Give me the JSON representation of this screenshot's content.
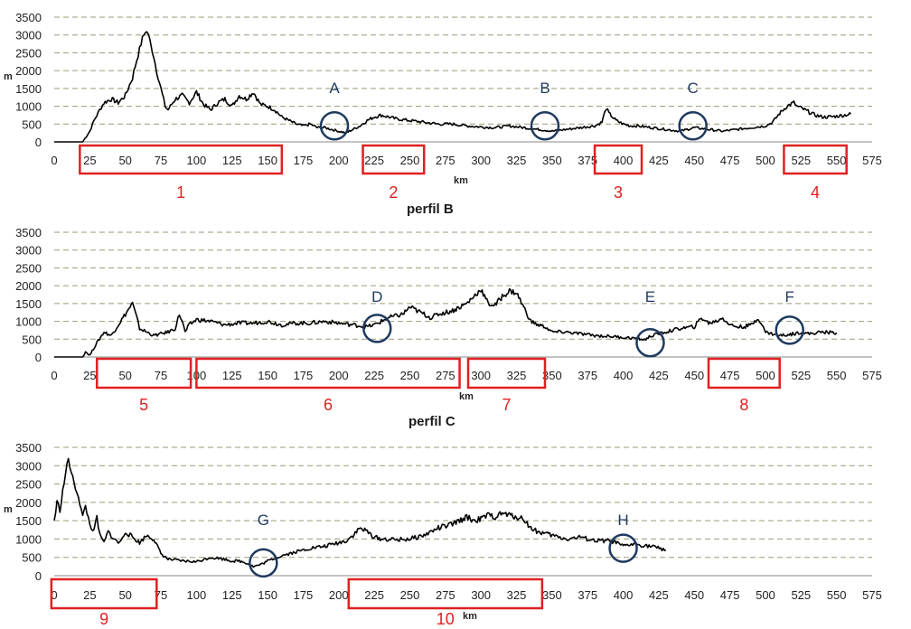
{
  "colors": {
    "profile_line": "#000000",
    "circle": "#1f3a5f",
    "box": "#e02020",
    "grid": "#9a9a7a"
  },
  "chart_data": [
    {
      "type": "line",
      "title": "",
      "xlabel": "km",
      "ylabel": "m",
      "xlim": [
        0,
        575
      ],
      "ylim": [
        0,
        3500
      ],
      "x_ticks": [
        0,
        25,
        50,
        75,
        100,
        125,
        150,
        175,
        200,
        225,
        250,
        275,
        300,
        325,
        350,
        375,
        400,
        425,
        450,
        475,
        500,
        525,
        550,
        575
      ],
      "y_ticks": [
        0,
        500,
        1000,
        1500,
        2000,
        2500,
        3000,
        3500
      ],
      "series": [
        {
          "x": [
            0,
            20,
            25,
            28,
            32,
            35,
            40,
            45,
            50,
            52,
            55,
            58,
            60,
            62,
            64,
            66,
            68,
            70,
            72,
            75,
            78,
            80,
            85,
            90,
            95,
            100,
            105,
            110,
            115,
            120,
            125,
            130,
            135,
            140,
            145,
            150,
            155,
            160,
            165,
            170,
            175,
            180,
            185,
            190,
            195,
            200,
            205,
            210,
            215,
            220,
            225,
            230,
            235,
            240,
            250,
            260,
            270,
            280,
            290,
            300,
            310,
            320,
            330,
            340,
            345,
            350,
            360,
            370,
            380,
            385,
            388,
            390,
            395,
            400,
            405,
            410,
            420,
            430,
            440,
            445,
            450,
            460,
            470,
            480,
            490,
            500,
            505,
            510,
            515,
            520,
            522,
            525,
            530,
            535,
            540,
            545,
            550,
            555,
            560
          ],
          "y": [
            0,
            0,
            300,
            600,
            900,
            1100,
            1200,
            1100,
            1300,
            1500,
            1800,
            2300,
            2600,
            2900,
            3100,
            3050,
            2700,
            2400,
            2000,
            1500,
            1000,
            900,
            1200,
            1300,
            1100,
            1400,
            1050,
            900,
            1100,
            1200,
            1000,
            1300,
            1200,
            1400,
            1050,
            1000,
            900,
            700,
            600,
            500,
            450,
            500,
            400,
            400,
            350,
            300,
            250,
            350,
            450,
            600,
            700,
            750,
            700,
            650,
            600,
            550,
            500,
            500,
            450,
            420,
            400,
            450,
            400,
            350,
            330,
            300,
            350,
            400,
            450,
            550,
            950,
            800,
            600,
            500,
            450,
            450,
            400,
            350,
            300,
            350,
            400,
            350,
            300,
            350,
            400,
            450,
            550,
            800,
            1000,
            1100,
            1000,
            950,
            850,
            750,
            700,
            700,
            720,
            750,
            780
          ]
        }
      ],
      "circles": [
        {
          "label": "A",
          "x": 197,
          "y": 400
        },
        {
          "label": "B",
          "x": 345,
          "y": 400
        },
        {
          "label": "C",
          "x": 449,
          "y": 400
        }
      ],
      "boxes": [
        {
          "label": "1",
          "x0": 18,
          "x1": 160
        },
        {
          "label": "2",
          "x0": 217,
          "x1": 260
        },
        {
          "label": "3",
          "x0": 380,
          "x1": 413
        },
        {
          "label": "4",
          "x0": 513,
          "x1": 557
        }
      ]
    },
    {
      "type": "line",
      "title": "perfil B",
      "xlabel": "km",
      "ylabel": "",
      "xlim": [
        0,
        575
      ],
      "ylim": [
        0,
        3500
      ],
      "x_ticks": [
        0,
        25,
        50,
        75,
        100,
        125,
        150,
        175,
        200,
        225,
        250,
        275,
        300,
        325,
        350,
        375,
        400,
        425,
        450,
        475,
        500,
        525,
        550,
        575
      ],
      "y_ticks": [
        0,
        500,
        1000,
        1500,
        2000,
        2500,
        3000,
        3500
      ],
      "series": [
        {
          "x": [
            0,
            20,
            22,
            25,
            30,
            35,
            40,
            45,
            50,
            55,
            58,
            60,
            65,
            70,
            75,
            80,
            85,
            88,
            90,
            92,
            95,
            100,
            110,
            120,
            130,
            140,
            150,
            160,
            170,
            180,
            190,
            200,
            210,
            220,
            225,
            230,
            235,
            240,
            245,
            250,
            255,
            260,
            265,
            270,
            275,
            280,
            285,
            290,
            295,
            300,
            305,
            310,
            315,
            320,
            325,
            330,
            335,
            340,
            345,
            350,
            360,
            370,
            380,
            390,
            400,
            410,
            415,
            420,
            430,
            440,
            450,
            455,
            460,
            465,
            470,
            475,
            480,
            485,
            490,
            495,
            500,
            505,
            510,
            515,
            520,
            525,
            530,
            540,
            550
          ],
          "y": [
            0,
            0,
            150,
            50,
            400,
            700,
            600,
            900,
            1200,
            1500,
            1100,
            800,
            700,
            600,
            650,
            700,
            800,
            1200,
            1000,
            700,
            900,
            1050,
            1000,
            900,
            950,
            950,
            1000,
            900,
            950,
            950,
            1000,
            950,
            900,
            850,
            900,
            1000,
            1100,
            1150,
            1200,
            1400,
            1300,
            1200,
            1100,
            1200,
            1250,
            1300,
            1400,
            1500,
            1700,
            1900,
            1500,
            1450,
            1700,
            1850,
            1800,
            1400,
            1000,
            900,
            850,
            700,
            700,
            650,
            600,
            580,
            550,
            520,
            480,
            600,
            700,
            800,
            850,
            1100,
            950,
            1000,
            1100,
            900,
            850,
            850,
            900,
            1100,
            700,
            650,
            600,
            620,
            650,
            700,
            650,
            700,
            680
          ]
        }
      ],
      "circles": [
        {
          "label": "D",
          "x": 227,
          "y": 750
        },
        {
          "label": "E",
          "x": 419,
          "y": 350
        },
        {
          "label": "F",
          "x": 517,
          "y": 700
        }
      ],
      "boxes": [
        {
          "label": "5",
          "x0": 30,
          "x1": 96
        },
        {
          "label": "6",
          "x0": 100,
          "x1": 285
        },
        {
          "label": "7",
          "x0": 291,
          "x1": 345
        },
        {
          "label": "8",
          "x0": 460,
          "x1": 510
        }
      ]
    },
    {
      "type": "line",
      "title": "perfil C",
      "xlabel": "km",
      "ylabel": "m",
      "xlim": [
        0,
        575
      ],
      "ylim": [
        0,
        3500
      ],
      "x_ticks": [
        0,
        25,
        50,
        75,
        100,
        125,
        150,
        175,
        200,
        225,
        250,
        275,
        300,
        325,
        350,
        375,
        400,
        425,
        450,
        475,
        500,
        525,
        550,
        575
      ],
      "y_ticks": [
        0,
        500,
        1000,
        1500,
        2000,
        2500,
        3000,
        3500
      ],
      "series": [
        {
          "x": [
            0,
            2,
            4,
            6,
            8,
            10,
            12,
            14,
            16,
            18,
            20,
            22,
            25,
            28,
            30,
            32,
            35,
            38,
            40,
            42,
            45,
            48,
            50,
            55,
            60,
            65,
            70,
            75,
            80,
            90,
            100,
            110,
            120,
            125,
            130,
            135,
            140,
            145,
            150,
            160,
            170,
            180,
            190,
            200,
            205,
            210,
            215,
            220,
            225,
            230,
            240,
            250,
            260,
            270,
            280,
            285,
            290,
            295,
            300,
            305,
            310,
            315,
            320,
            325,
            330,
            335,
            340,
            345,
            350,
            360,
            370,
            380,
            390,
            395,
            400,
            405,
            410,
            420,
            430
          ],
          "y": [
            1500,
            2000,
            1800,
            2300,
            2800,
            3200,
            2800,
            2500,
            2300,
            2000,
            1600,
            1900,
            1400,
            1200,
            1600,
            1100,
            900,
            1200,
            1100,
            1000,
            900,
            1000,
            1200,
            1050,
            900,
            1100,
            1000,
            600,
            450,
            400,
            380,
            500,
            450,
            400,
            400,
            350,
            250,
            300,
            400,
            550,
            650,
            750,
            800,
            900,
            950,
            1100,
            1300,
            1200,
            1050,
            1000,
            980,
            1000,
            1100,
            1300,
            1400,
            1500,
            1600,
            1500,
            1550,
            1650,
            1600,
            1700,
            1650,
            1600,
            1550,
            1300,
            1200,
            1150,
            1100,
            1000,
            1050,
            950,
            950,
            900,
            800,
            850,
            850,
            800,
            700
          ]
        }
      ],
      "circles": [
        {
          "label": "G",
          "x": 147,
          "y": 300
        },
        {
          "label": "H",
          "x": 400,
          "y": 700
        }
      ],
      "boxes": [
        {
          "label": "9",
          "x0": -2,
          "x1": 72
        },
        {
          "label": "10",
          "x0": 207,
          "x1": 343
        }
      ]
    }
  ]
}
